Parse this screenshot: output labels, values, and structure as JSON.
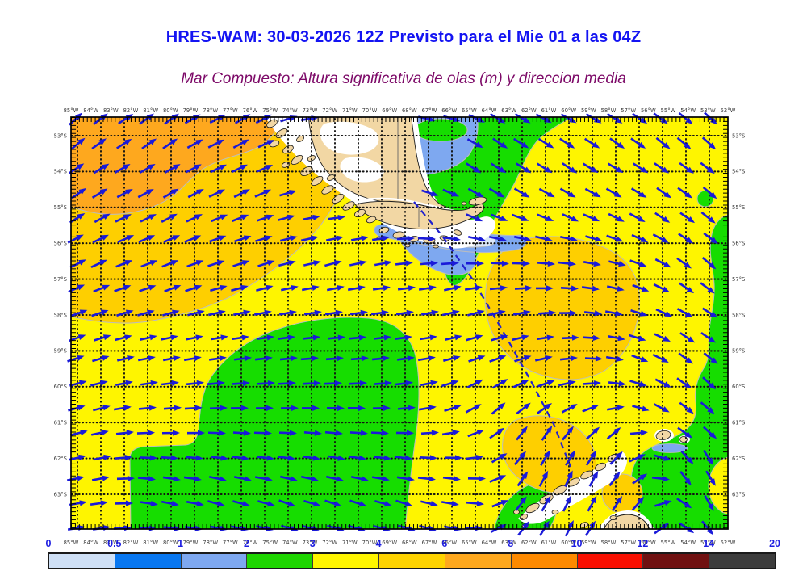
{
  "header": {
    "title": "HRES-WAM: 30-03-2026 12Z Previsto para el Mie 01 a las 04Z",
    "title_color": "#1414f2",
    "subtitle": "Mar Compuesto: Altura significativa de olas (m) y direccion media",
    "subtitle_color": "#7d0a68"
  },
  "map": {
    "lon_labels": [
      "85°W",
      "84°W",
      "83°W",
      "82°W",
      "81°W",
      "80°W",
      "79°W",
      "78°W",
      "77°W",
      "76°W",
      "75°W",
      "74°W",
      "73°W",
      "72°W",
      "71°W",
      "70°W",
      "69°W",
      "68°W",
      "67°W",
      "66°W",
      "65°W",
      "64°W",
      "63°W",
      "62°W",
      "61°W",
      "60°W",
      "59°W",
      "58°W",
      "57°W",
      "56°W",
      "55°W",
      "54°W",
      "53°W",
      "52°W"
    ],
    "lat_labels": [
      "53°S",
      "54°S",
      "55°S",
      "56°S",
      "57°S",
      "58°S",
      "59°S",
      "60°S",
      "61°S",
      "62°S",
      "63°S"
    ],
    "label_color": "#3c3c3c",
    "arrow_color": "#1a1ad9",
    "route_color": "#2121cf",
    "grid_dot_color": "#121212",
    "border_color": "#000000",
    "contour_line_color": "#bdbdbd",
    "sea_colors": {
      "yellow": "#fef500",
      "green": "#16dd00",
      "gold": "#fecf00",
      "orange": "#fea81e",
      "blue_light": "#7ea8f0",
      "blue_pale": "#dbe7f8"
    },
    "land_color": "#f2d7a4",
    "land_halo_color": "#ffffff",
    "coast_color": "#1a1a1a",
    "border_line_color": "#666666",
    "arrow_field": [
      [
        95,
        155,
        50
      ],
      [
        200,
        158,
        45
      ],
      [
        310,
        155,
        40
      ],
      [
        95,
        250,
        40
      ],
      [
        220,
        248,
        36
      ],
      [
        310,
        235,
        33
      ],
      [
        100,
        335,
        30
      ],
      [
        220,
        345,
        26
      ],
      [
        320,
        335,
        24
      ],
      [
        100,
        425,
        22
      ],
      [
        230,
        432,
        12
      ],
      [
        330,
        428,
        8
      ],
      [
        105,
        510,
        20
      ],
      [
        230,
        515,
        5
      ],
      [
        340,
        515,
        2
      ],
      [
        115,
        575,
        18
      ],
      [
        115,
        650,
        13
      ],
      [
        200,
        565,
        -4
      ],
      [
        200,
        610,
        -22
      ],
      [
        280,
        612,
        -27
      ],
      [
        360,
        622,
        -30
      ],
      [
        290,
        565,
        -8
      ],
      [
        420,
        330,
        22
      ],
      [
        430,
        430,
        4
      ],
      [
        450,
        520,
        -2
      ],
      [
        420,
        565,
        -15
      ],
      [
        430,
        625,
        -33
      ],
      [
        500,
        630,
        -33
      ],
      [
        500,
        560,
        -15
      ],
      [
        520,
        430,
        6
      ],
      [
        540,
        505,
        8
      ],
      [
        570,
        505,
        28
      ],
      [
        605,
        492,
        55
      ],
      [
        545,
        555,
        -5
      ],
      [
        575,
        585,
        -28
      ],
      [
        600,
        620,
        -30
      ],
      [
        545,
        645,
        -30
      ],
      [
        620,
        500,
        60
      ],
      [
        648,
        540,
        78
      ],
      [
        688,
        545,
        85
      ],
      [
        658,
        590,
        83
      ],
      [
        700,
        600,
        86
      ],
      [
        645,
        638,
        80
      ],
      [
        700,
        648,
        83
      ],
      [
        738,
        583,
        78
      ],
      [
        758,
        540,
        70
      ],
      [
        745,
        618,
        72
      ],
      [
        788,
        645,
        62
      ],
      [
        560,
        355,
        25
      ],
      [
        590,
        395,
        24
      ],
      [
        620,
        425,
        22
      ],
      [
        648,
        318,
        12
      ],
      [
        700,
        308,
        5
      ],
      [
        752,
        330,
        -6
      ],
      [
        640,
        380,
        16
      ],
      [
        700,
        378,
        3
      ],
      [
        758,
        382,
        -10
      ],
      [
        805,
        362,
        -28
      ],
      [
        855,
        345,
        -46
      ],
      [
        645,
        448,
        20
      ],
      [
        700,
        450,
        6
      ],
      [
        755,
        458,
        -14
      ],
      [
        805,
        448,
        -34
      ],
      [
        858,
        438,
        -52
      ],
      [
        880,
        330,
        -52
      ],
      [
        886,
        250,
        -50
      ],
      [
        882,
        160,
        -52
      ],
      [
        830,
        170,
        -46
      ],
      [
        762,
        180,
        -40
      ],
      [
        700,
        200,
        -46
      ],
      [
        640,
        228,
        -50
      ],
      [
        600,
        258,
        -48
      ],
      [
        580,
        205,
        -55
      ],
      [
        622,
        165,
        -46
      ],
      [
        545,
        215,
        -25
      ],
      [
        520,
        185,
        -18
      ],
      [
        548,
        160,
        -10
      ],
      [
        762,
        252,
        -36
      ],
      [
        820,
        255,
        -42
      ],
      [
        700,
        258,
        -44
      ],
      [
        660,
        285,
        -28
      ],
      [
        622,
        290,
        -10
      ],
      [
        880,
        480,
        -58
      ],
      [
        846,
        508,
        -50
      ],
      [
        808,
        508,
        -36
      ],
      [
        876,
        572,
        -78
      ],
      [
        888,
        622,
        -82
      ],
      [
        848,
        592,
        -74
      ],
      [
        862,
        655,
        -70
      ],
      [
        812,
        655,
        55
      ],
      [
        780,
        625,
        65
      ],
      [
        480,
        160,
        5
      ],
      [
        470,
        310,
        18
      ]
    ]
  },
  "colorbar": {
    "values": [
      "0",
      "0.5",
      "1",
      "2",
      "3",
      "4",
      "6",
      "8",
      "10",
      "12",
      "14",
      "20"
    ],
    "colors": [
      "#cfe0f6",
      "#0877f0",
      "#7ea8f0",
      "#1ed600",
      "#fff500",
      "#fed300",
      "#fea81e",
      "#fe8a00",
      "#f90f00",
      "#701111",
      "#3c3c3c"
    ],
    "value_color": "#1e1ee0"
  }
}
